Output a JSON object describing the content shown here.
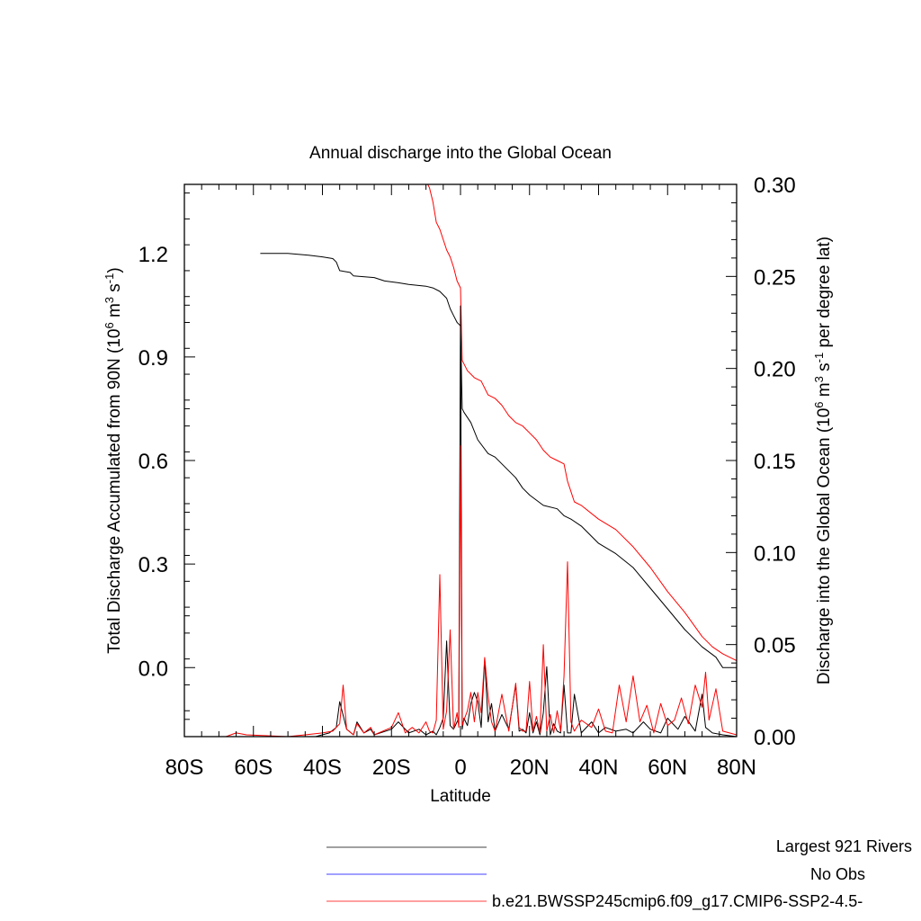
{
  "chart_data": {
    "type": "line",
    "title": "Annual discharge into the Global Ocean",
    "xlabel": "Latitude",
    "ylabel_left": {
      "text": "Total Discharge Accumulated from 90N (10",
      "sup1": "6",
      "mid1": " m",
      "sup2": "3",
      "mid2": " s",
      "sup3": "-1",
      "end": ")"
    },
    "ylabel_right": {
      "text": "Discharge into the Global Ocean (10",
      "sup1": "6",
      "mid1": " m",
      "sup2": "3",
      "mid2": " s",
      "sup3": "-1",
      "end": " per degree lat)"
    },
    "xlim": [
      -80,
      80
    ],
    "ylim_left": [
      -0.2,
      1.4
    ],
    "ylim_right": [
      0.0,
      0.3
    ],
    "x_ticks": [
      {
        "value": -80,
        "label": "80S"
      },
      {
        "value": -60,
        "label": "60S"
      },
      {
        "value": -40,
        "label": "40S"
      },
      {
        "value": -20,
        "label": "20S"
      },
      {
        "value": 0,
        "label": "0"
      },
      {
        "value": 20,
        "label": "20N"
      },
      {
        "value": 40,
        "label": "40N"
      },
      {
        "value": 60,
        "label": "60N"
      },
      {
        "value": 80,
        "label": "80N"
      }
    ],
    "y_left_ticks": [
      {
        "value": 0.0,
        "label": "0.0"
      },
      {
        "value": 0.3,
        "label": "0.3"
      },
      {
        "value": 0.6,
        "label": "0.6"
      },
      {
        "value": 0.9,
        "label": "0.9"
      },
      {
        "value": 1.2,
        "label": "1.2"
      }
    ],
    "y_right_ticks": [
      {
        "value": 0.0,
        "label": "0.00"
      },
      {
        "value": 0.05,
        "label": "0.05"
      },
      {
        "value": 0.1,
        "label": "0.10"
      },
      {
        "value": 0.15,
        "label": "0.15"
      },
      {
        "value": 0.2,
        "label": "0.20"
      },
      {
        "value": 0.25,
        "label": "0.25"
      },
      {
        "value": 0.3,
        "label": "0.30"
      }
    ],
    "grid": false,
    "legend_position": "bottom-right",
    "colors": {
      "largest": "#000000",
      "no_obs": "#0000ff",
      "model": "#ff0000"
    },
    "series": [
      {
        "name": "Largest 921 Rivers",
        "color": "#000000",
        "axis": "left",
        "x": [
          -58,
          -50,
          -44,
          -40,
          -37,
          -36,
          -35,
          -32,
          -31,
          -25,
          -22,
          -18,
          -15,
          -10,
          -8,
          -6,
          -4,
          -3,
          -2,
          -1,
          0,
          0.5,
          1,
          3,
          5,
          8,
          10,
          13,
          16,
          18,
          20,
          24,
          28,
          30,
          32,
          35,
          40,
          45,
          50,
          55,
          60,
          65,
          70,
          74,
          76,
          80
        ],
        "y": [
          1.2,
          1.2,
          1.195,
          1.19,
          1.185,
          1.175,
          1.15,
          1.145,
          1.135,
          1.13,
          1.12,
          1.115,
          1.11,
          1.105,
          1.1,
          1.09,
          1.07,
          1.04,
          1.02,
          1.0,
          0.99,
          0.75,
          0.74,
          0.71,
          0.66,
          0.62,
          0.61,
          0.58,
          0.55,
          0.52,
          0.5,
          0.47,
          0.46,
          0.44,
          0.43,
          0.41,
          0.36,
          0.33,
          0.29,
          0.23,
          0.17,
          0.11,
          0.06,
          0.03,
          0.0,
          0.0
        ]
      },
      {
        "name": "No Obs",
        "color": "#0000ff",
        "axis": "left",
        "x": [],
        "y": []
      },
      {
        "name": "b.e21.BWSSP245cmip6.f09_g17.CMIP6-SSP2-4.5-",
        "color": "#ff0000",
        "axis": "left",
        "x": [
          -10,
          -9,
          -8,
          -7,
          -6,
          -5,
          -4,
          -3,
          -2,
          -1,
          0,
          0.5,
          2,
          4,
          6,
          8,
          10,
          12,
          14,
          16,
          18,
          20,
          22,
          24,
          26,
          28,
          30,
          31,
          33,
          35,
          40,
          45,
          50,
          55,
          60,
          65,
          70,
          73,
          76,
          80
        ],
        "y": [
          1.41,
          1.39,
          1.35,
          1.29,
          1.27,
          1.24,
          1.21,
          1.19,
          1.16,
          1.12,
          1.1,
          0.89,
          0.86,
          0.84,
          0.83,
          0.79,
          0.78,
          0.76,
          0.73,
          0.71,
          0.7,
          0.68,
          0.66,
          0.63,
          0.61,
          0.6,
          0.59,
          0.54,
          0.48,
          0.47,
          0.43,
          0.4,
          0.35,
          0.29,
          0.22,
          0.16,
          0.09,
          0.06,
          0.04,
          0.02
        ]
      },
      {
        "name": "Largest 921 Rivers (per degree lat)",
        "color": "#000000",
        "axis": "right",
        "x": [
          -80,
          -42,
          -38,
          -36,
          -35,
          -33,
          -31,
          -30,
          -28,
          -26,
          -25,
          -20,
          -18,
          -15,
          -12,
          -10,
          -8,
          -7,
          -6,
          -5,
          -4,
          -3,
          -2,
          -1,
          -0.5,
          0,
          0.5,
          1,
          2,
          3,
          4,
          5,
          6,
          7,
          8,
          9,
          10,
          12,
          14,
          16,
          17,
          18,
          19,
          20,
          21,
          22,
          23,
          24,
          25,
          26,
          27,
          28,
          29,
          30,
          31,
          32,
          33,
          35,
          38,
          40,
          42,
          45,
          48,
          50,
          53,
          55,
          58,
          60,
          63,
          65,
          68,
          70,
          71,
          73,
          76,
          80
        ],
        "y": [
          0.0,
          0.0,
          0.002,
          0.005,
          0.019,
          0.004,
          0.001,
          0.008,
          0.002,
          0.004,
          0.001,
          0.004,
          0.008,
          0.002,
          0.004,
          0.001,
          0.003,
          0.001,
          0.005,
          0.01,
          0.052,
          0.006,
          0.004,
          0.008,
          0.01,
          0.234,
          0.004,
          0.01,
          0.006,
          0.018,
          0.024,
          0.019,
          0.005,
          0.042,
          0.008,
          0.018,
          0.003,
          0.012,
          0.004,
          0.028,
          0.003,
          0.004,
          0.002,
          0.013,
          0.002,
          0.008,
          0.001,
          0.013,
          0.038,
          0.001,
          0.007,
          0.003,
          0.002,
          0.028,
          0.002,
          0.002,
          0.023,
          0.002,
          0.008,
          0.002,
          0.005,
          0.003,
          0.004,
          0.002,
          0.008,
          0.004,
          0.002,
          0.01,
          0.004,
          0.011,
          0.003,
          0.023,
          0.005,
          0.002,
          0.001,
          0.0
        ]
      },
      {
        "name": "b.e21.BWSSP245cmip6.f09_g17.CMIP6-SSP2-4.5- (per degree lat)",
        "color": "#ff0000",
        "axis": "right",
        "x": [
          -80,
          -68,
          -65,
          -62,
          -50,
          -45,
          -40,
          -37,
          -35,
          -34,
          -33,
          -31,
          -30,
          -28,
          -26,
          -25,
          -20,
          -18,
          -16,
          -14,
          -12,
          -10,
          -9,
          -8,
          -7,
          -6,
          -5,
          -4,
          -3,
          -2,
          -1,
          -0.5,
          0,
          0.5,
          1,
          2,
          3,
          4,
          5,
          6,
          7,
          8,
          9,
          10,
          12,
          14,
          16,
          17,
          18,
          19,
          20,
          21,
          22,
          23,
          24,
          25,
          26,
          27,
          28,
          29,
          30,
          31,
          32,
          33,
          35,
          38,
          40,
          42,
          44,
          46,
          48,
          50,
          52,
          54,
          56,
          58,
          60,
          62,
          64,
          66,
          68,
          70,
          71,
          72,
          74,
          76,
          80
        ],
        "y": [
          0.0,
          0.0,
          0.002,
          0.001,
          0.0,
          0.001,
          0.002,
          0.003,
          0.007,
          0.028,
          0.004,
          0.001,
          0.007,
          0.002,
          0.005,
          0.001,
          0.005,
          0.013,
          0.002,
          0.005,
          0.002,
          0.008,
          0.003,
          0.002,
          0.009,
          0.088,
          0.004,
          0.014,
          0.058,
          0.004,
          0.013,
          0.005,
          0.158,
          0.006,
          0.009,
          0.014,
          0.024,
          0.008,
          0.024,
          0.013,
          0.043,
          0.022,
          0.008,
          0.003,
          0.023,
          0.003,
          0.029,
          0.005,
          0.003,
          0.003,
          0.03,
          0.003,
          0.011,
          0.002,
          0.05,
          0.003,
          0.012,
          0.002,
          0.014,
          0.003,
          0.033,
          0.095,
          0.008,
          0.003,
          0.009,
          0.005,
          0.015,
          0.003,
          0.002,
          0.028,
          0.008,
          0.033,
          0.008,
          0.017,
          0.002,
          0.018,
          0.006,
          0.009,
          0.021,
          0.007,
          0.028,
          0.016,
          0.035,
          0.009,
          0.026,
          0.003,
          0.001
        ]
      }
    ]
  }
}
